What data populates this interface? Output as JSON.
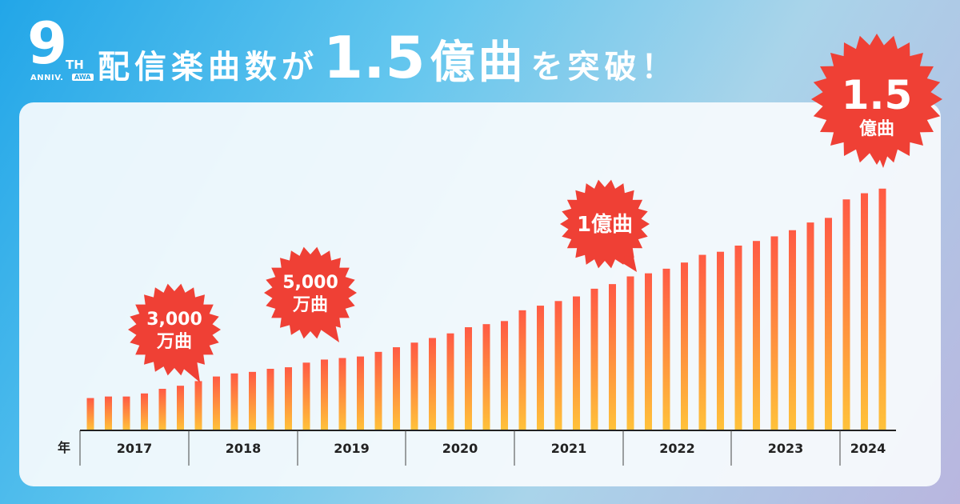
{
  "logo": {
    "number": "9",
    "suffix": "TH",
    "label": "ANNIV.",
    "brand": "AWA"
  },
  "headline": {
    "prefix": "配信楽曲数が",
    "number": "1.5",
    "unit": "億曲",
    "suffix": "を突破！"
  },
  "colors": {
    "bar_top": "#ff5a44",
    "bar_bottom": "#ffc23a",
    "badge": "#ef4035",
    "text": "#222222"
  },
  "chart_data": {
    "type": "bar",
    "xlabel": "年",
    "ylabel": "",
    "ylim": [
      0,
      1.6
    ],
    "year_labels": [
      "2017",
      "2018",
      "2019",
      "2020",
      "2021",
      "2022",
      "2023",
      "2024"
    ],
    "values": [
      0.21,
      0.22,
      0.22,
      0.24,
      0.27,
      0.29,
      0.32,
      0.35,
      0.37,
      0.38,
      0.4,
      0.41,
      0.44,
      0.46,
      0.47,
      0.48,
      0.51,
      0.54,
      0.57,
      0.6,
      0.63,
      0.67,
      0.69,
      0.71,
      0.78,
      0.81,
      0.84,
      0.87,
      0.92,
      0.95,
      1.0,
      1.02,
      1.05,
      1.09,
      1.14,
      1.16,
      1.2,
      1.23,
      1.26,
      1.3,
      1.35,
      1.38,
      1.5,
      1.54,
      1.57
    ],
    "annotations": [
      {
        "line1": "3,000",
        "line2": "万曲"
      },
      {
        "line1": "5,000",
        "line2": "万曲"
      },
      {
        "line1": "1億曲",
        "line2": ""
      },
      {
        "line1": "1.5",
        "line2": "億曲"
      }
    ]
  }
}
